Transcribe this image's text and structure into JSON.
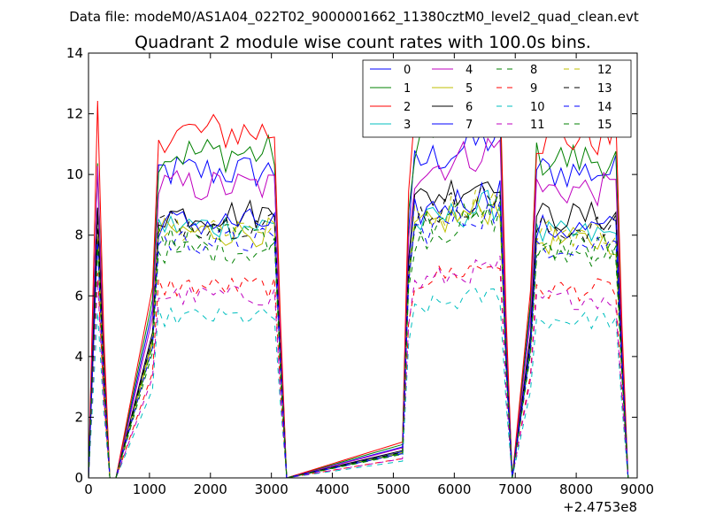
{
  "chart_data": {
    "type": "line",
    "suptitle": "Data file: modeM0/AS1A04_022T02_9000001662_11380cztM0_level2_quad_clean.evt",
    "title": "Quadrant 2 module wise count rates with 100.0s bins.",
    "xlabel": "",
    "ylabel": "",
    "x_offset_label": "+2.4753e8",
    "xlim": [
      0,
      9000
    ],
    "ylim": [
      0,
      14
    ],
    "xticks": [
      0,
      1000,
      2000,
      3000,
      4000,
      5000,
      6000,
      7000,
      8000,
      9000
    ],
    "yticks": [
      0,
      2,
      4,
      6,
      8,
      10,
      12,
      14
    ],
    "legend_position": "top-right",
    "legend_columns": 4,
    "x_segments": [
      {
        "start": 150,
        "end": 350,
        "step": 100
      },
      {
        "start": 1050,
        "end": 3150,
        "step": 100
      },
      {
        "start": 5150,
        "end": 6850,
        "step": 100
      },
      {
        "start": 7250,
        "end": 8750,
        "step": 100
      }
    ],
    "series": [
      {
        "name": "0",
        "color": "#0000ff",
        "dash": "solid",
        "levels": [
          10.0,
          10.1,
          10.2,
          10.1
        ]
      },
      {
        "name": "1",
        "color": "#008000",
        "dash": "solid",
        "levels": [
          11.0,
          10.7,
          11.0,
          10.5
        ]
      },
      {
        "name": "2",
        "color": "#ff0000",
        "dash": "solid",
        "levels": [
          12.0,
          11.4,
          11.8,
          11.2
        ]
      },
      {
        "name": "3",
        "color": "#00bfbf",
        "dash": "solid",
        "levels": [
          8.2,
          8.3,
          8.2,
          8.0
        ]
      },
      {
        "name": "4",
        "color": "#bf00bf",
        "dash": "solid",
        "levels": [
          9.8,
          9.6,
          9.9,
          9.5
        ]
      },
      {
        "name": "5",
        "color": "#bfbf00",
        "dash": "solid",
        "levels": [
          8.3,
          8.1,
          8.1,
          7.8
        ]
      },
      {
        "name": "6",
        "color": "#000000",
        "dash": "solid",
        "levels": [
          9.0,
          8.7,
          9.0,
          8.6
        ]
      },
      {
        "name": "7",
        "color": "#0000ff",
        "dash": "solid",
        "levels": [
          8.0,
          8.4,
          8.6,
          8.2
        ]
      },
      {
        "name": "8",
        "color": "#008000",
        "dash": "dashed",
        "levels": [
          7.6,
          7.5,
          7.8,
          7.4
        ]
      },
      {
        "name": "9",
        "color": "#ff0000",
        "dash": "dashed",
        "levels": [
          6.7,
          6.3,
          6.4,
          6.2
        ]
      },
      {
        "name": "10",
        "color": "#00bfbf",
        "dash": "dashed",
        "levels": [
          5.5,
          5.3,
          5.5,
          5.2
        ]
      },
      {
        "name": "11",
        "color": "#bf00bf",
        "dash": "dashed",
        "levels": [
          6.3,
          6.0,
          6.3,
          5.9
        ]
      },
      {
        "name": "12",
        "color": "#bfbf00",
        "dash": "dashed",
        "levels": [
          8.4,
          8.3,
          8.4,
          8.1
        ]
      },
      {
        "name": "13",
        "color": "#000000",
        "dash": "dashed",
        "levels": [
          8.8,
          8.4,
          8.5,
          8.2
        ]
      },
      {
        "name": "14",
        "color": "#0000ff",
        "dash": "dashed",
        "levels": [
          7.9,
          7.8,
          8.0,
          7.7
        ]
      },
      {
        "name": "15",
        "color": "#008000",
        "dash": "dashed",
        "levels": [
          8.0,
          7.9,
          8.1,
          7.6
        ]
      }
    ]
  }
}
